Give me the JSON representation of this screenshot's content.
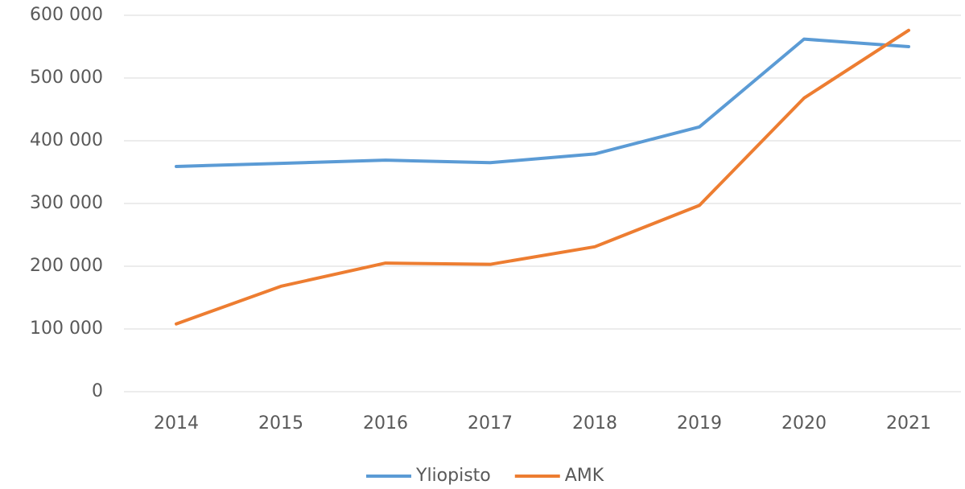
{
  "chart_data": {
    "type": "line",
    "categories": [
      "2014",
      "2015",
      "2016",
      "2017",
      "2018",
      "2019",
      "2020",
      "2021"
    ],
    "series": [
      {
        "name": "Yliopisto",
        "color": "#5b9bd5",
        "values": [
          359000,
          364000,
          369000,
          365000,
          379000,
          422000,
          562000,
          550000
        ]
      },
      {
        "name": "AMK",
        "color": "#ed7d31",
        "values": [
          108000,
          168000,
          205000,
          203000,
          231000,
          297000,
          468000,
          576000
        ]
      }
    ],
    "ylim": [
      0,
      600000
    ],
    "yticks": [
      0,
      {
        "value": 100000,
        "label": "100 000"
      },
      {
        "value": 200000,
        "label": "200 000"
      },
      {
        "value": 300000,
        "label": "300 000"
      },
      {
        "value": 400000,
        "label": "400 000"
      },
      {
        "value": 500000,
        "label": "500 000"
      },
      {
        "value": 600000,
        "label": "600 000"
      }
    ],
    "grid": true,
    "legend": "bottom"
  }
}
